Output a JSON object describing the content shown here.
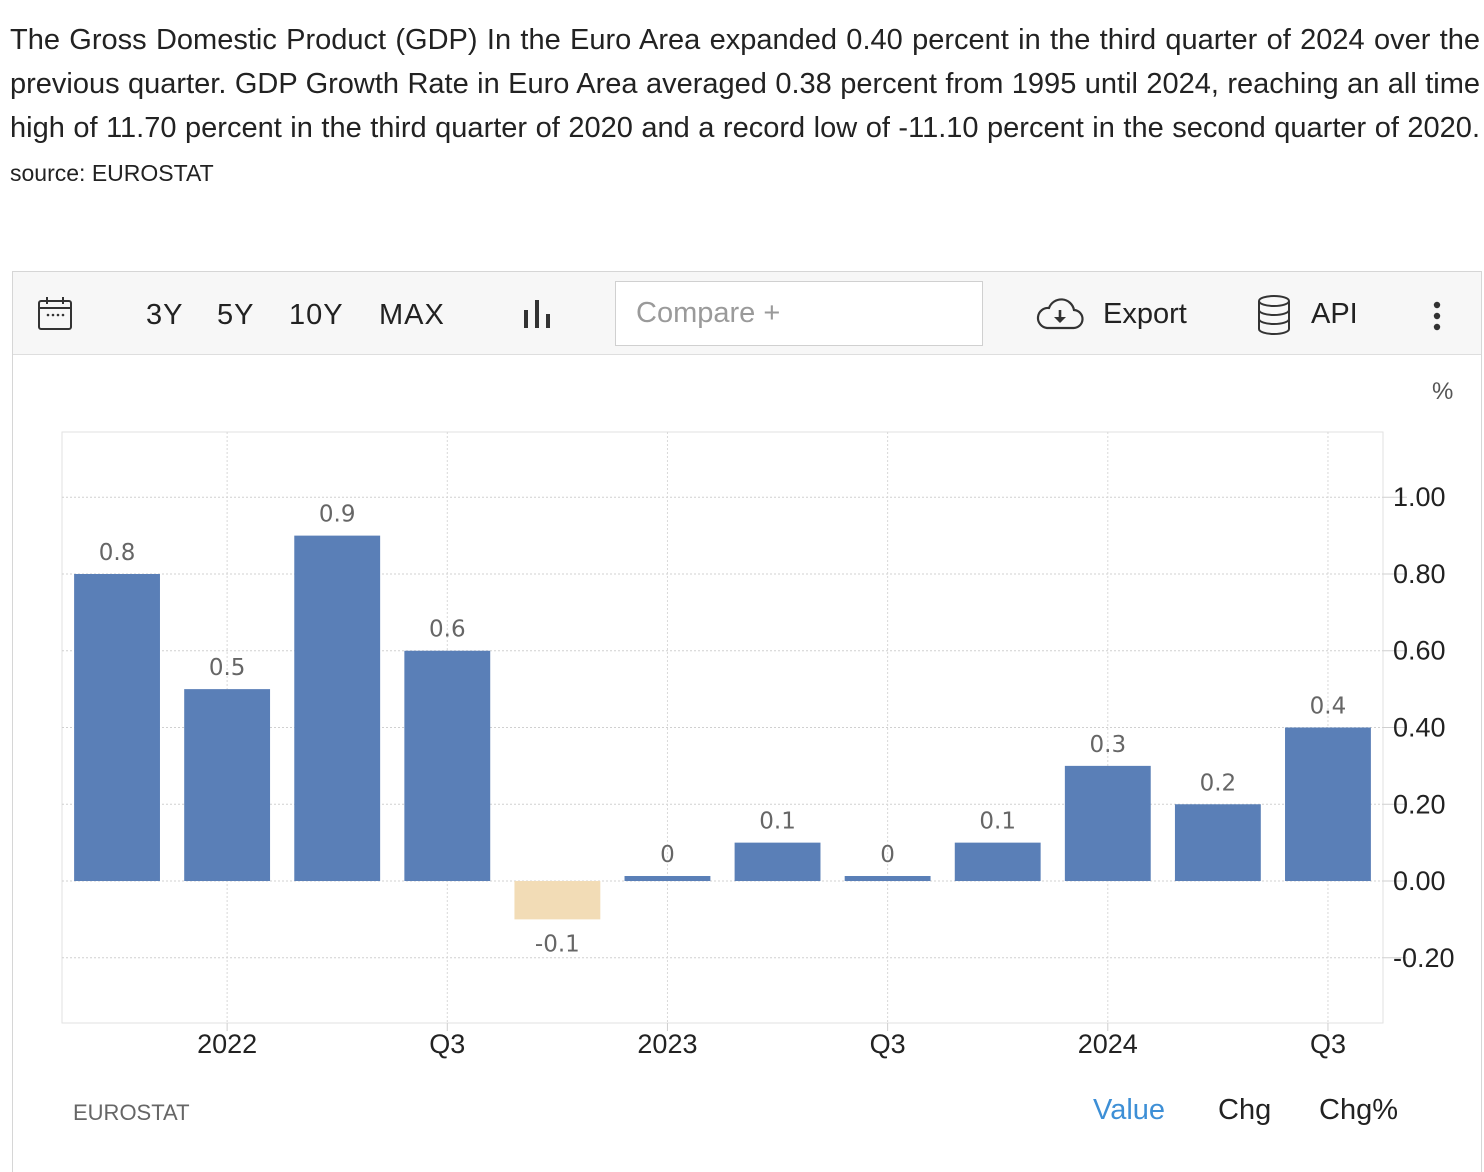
{
  "description": {
    "text": "The Gross Domestic Product (GDP) In the Euro Area expanded 0.40 percent in the third quarter of 2024 over the previous quarter. GDP Growth Rate in Euro Area averaged 0.38 percent from 1995 until 2024, reaching an all time high of 11.70 percent in the third quarter of 2020 and a record low of -11.10 percent in the second quarter of 2020.",
    "source": "source: EUROSTAT"
  },
  "toolbar": {
    "calendar_icon": "calendar-icon",
    "ranges": [
      "3Y",
      "5Y",
      "10Y",
      "MAX"
    ],
    "chart_type_icon": "bar-chart-icon",
    "compare_placeholder": "Compare +",
    "export_icon": "cloud-download-icon",
    "export_label": "Export",
    "api_icon": "database-icon",
    "api_label": "API",
    "more_icon": "more-vertical-icon"
  },
  "chart_data": {
    "type": "bar",
    "unit": "%",
    "categories": [
      "2021 Q4",
      "2022 Q1",
      "2022 Q2",
      "2022 Q3",
      "2022 Q4",
      "2023 Q1",
      "2023 Q2",
      "2023 Q3",
      "2023 Q4",
      "2024 Q1",
      "2024 Q2",
      "2024 Q3"
    ],
    "values": [
      0.8,
      0.5,
      0.9,
      0.6,
      -0.1,
      0.0,
      0.1,
      0.0,
      0.1,
      0.3,
      0.2,
      0.4
    ],
    "value_labels": [
      "0.8",
      "0.5",
      "0.9",
      "0.6",
      "-0.1",
      "0",
      "0.1",
      "0",
      "0.1",
      "0.3",
      "0.2",
      "0.4"
    ],
    "x_tick_labels": [
      "2022",
      "Q3",
      "2023",
      "Q3",
      "2024",
      "Q3"
    ],
    "y_ticks": [
      -0.2,
      0.0,
      0.2,
      0.4,
      0.6,
      0.8,
      1.0
    ],
    "y_tick_labels": [
      "-0.20",
      "0.00",
      "0.20",
      "0.40",
      "0.60",
      "0.80",
      "1.00"
    ],
    "ylim": [
      -0.37,
      1.17
    ],
    "grid": true,
    "y_axis_side": "right",
    "colors": {
      "positive": "#5a7fb7",
      "negative": "#f2dcb6"
    }
  },
  "footer": {
    "source": "EUROSTAT",
    "tabs": [
      "Value",
      "Chg",
      "Chg%"
    ],
    "active_tab": "Value",
    "active_color": "#3d8fd6"
  }
}
